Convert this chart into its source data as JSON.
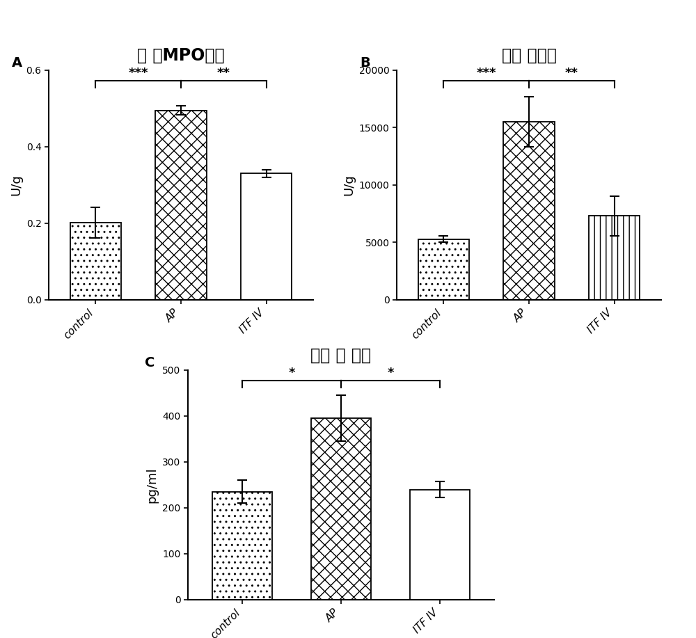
{
  "title_A": "胰腻MPO活力",
  "title_A_display": "胰 腻MPO活力",
  "title_B": "血清 淠粉酶",
  "title_C": "血清 脂 肪酶",
  "categories": [
    "control",
    "AP",
    "ITF IV"
  ],
  "ylabel_A": "U/g",
  "ylabel_B": "U/g",
  "ylabel_C": "pg/ml",
  "values_A": [
    0.202,
    0.495,
    0.33
  ],
  "errors_A": [
    0.04,
    0.012,
    0.01
  ],
  "ylim_A": [
    0.0,
    0.6
  ],
  "yticks_A": [
    0.0,
    0.2,
    0.4,
    0.6
  ],
  "values_B": [
    5300,
    15500,
    7300
  ],
  "errors_B": [
    300,
    2200,
    1700
  ],
  "ylim_B": [
    0,
    20000
  ],
  "yticks_B": [
    0,
    5000,
    10000,
    15000,
    20000
  ],
  "values_C": [
    235,
    395,
    240
  ],
  "errors_C": [
    25,
    50,
    18
  ],
  "ylim_C": [
    0,
    500
  ],
  "yticks_C": [
    0,
    100,
    200,
    300,
    400,
    500
  ],
  "bar_width": 0.6,
  "background_color": "#ffffff",
  "title_fontsize": 17,
  "label_fontsize": 13,
  "tick_fontsize": 11,
  "panel_label_fontsize": 14,
  "sig_fontsize": 13
}
